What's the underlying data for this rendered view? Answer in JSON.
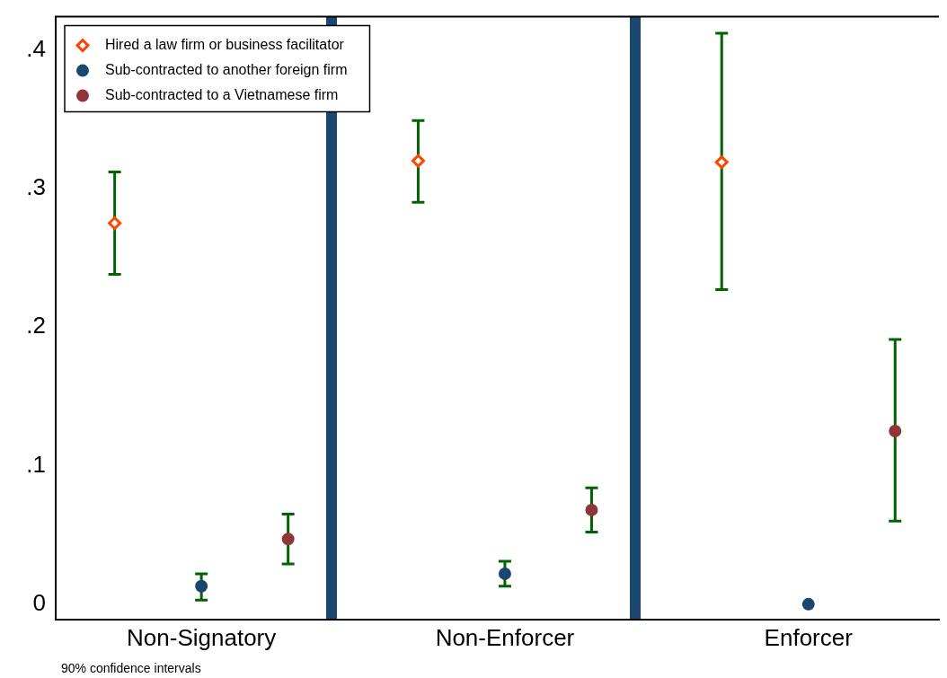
{
  "chart_data": {
    "type": "scatter",
    "categories": [
      "Non-Signatory",
      "Non-Enforcer",
      "Enforcer"
    ],
    "ylim": [
      -0.011,
      0.424
    ],
    "yticks": [
      0,
      {
        "value": 0.1,
        "label": ".1"
      },
      {
        "value": 0.2,
        "label": ".2"
      },
      {
        "value": 0.3,
        "label": ".3"
      },
      {
        "value": 0.4,
        "label": ".4"
      }
    ],
    "grid": false,
    "legend": "top left",
    "series": [
      {
        "name": "Hired a law firm or business facilitator",
        "color": "#ff4500",
        "marker": "diamond",
        "values": [
          0.275,
          0.32,
          0.319
        ],
        "errors": [
          [
            0.238,
            0.312
          ],
          [
            0.29,
            0.349
          ],
          [
            0.227,
            0.412
          ]
        ]
      },
      {
        "name": "Sub-contracted to another foreign firm",
        "color": "#1a476f",
        "marker": "circle",
        "values": [
          0.013,
          0.022,
          0
        ],
        "errors": [
          [
            0.003,
            0.022
          ],
          [
            0.013,
            0.031
          ],
          null
        ]
      },
      {
        "name": "Sub-contracted to a Vietnamese firm",
        "color": "#90353b",
        "marker": "circle",
        "values": [
          0.047,
          0.068,
          0.125
        ],
        "errors": [
          [
            0.029,
            0.065
          ],
          [
            0.052,
            0.084
          ],
          [
            0.06,
            0.191
          ]
        ]
      }
    ],
    "annotations": [
      "90% confidence intervals"
    ]
  }
}
